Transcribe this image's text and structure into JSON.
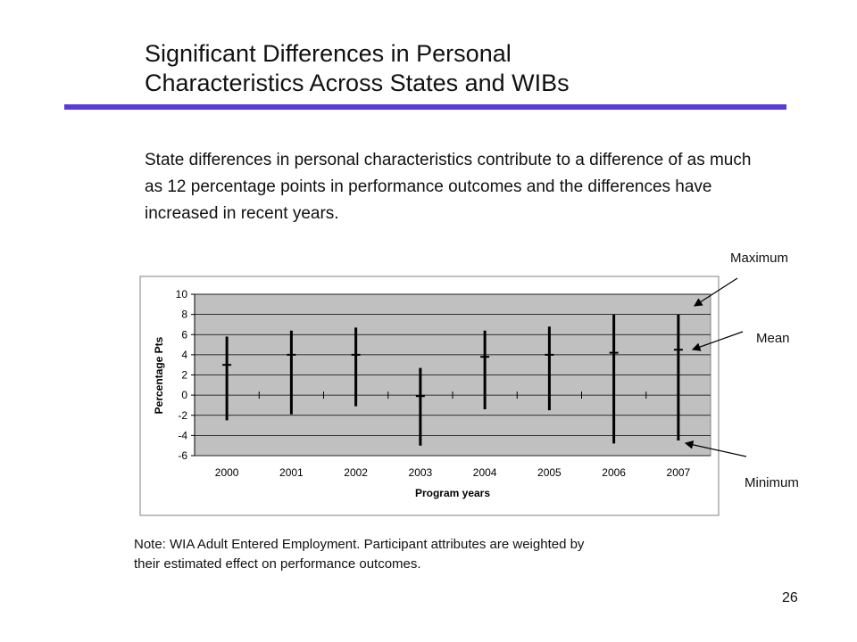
{
  "slide": {
    "title_line1": "Significant Differences in Personal",
    "title_line2": "Characteristics Across States and WIBs",
    "body": "State differences in personal characteristics contribute to a difference of as much as 12 percentage points in performance outcomes and the differences have increased in recent years.",
    "note_line1": "Note:  WIA Adult Entered Employment.  Participant attributes are weighted by",
    "note_line2": "their estimated effect on performance outcomes.",
    "page_number": "26",
    "accent_color": "#5b3ad6"
  },
  "callouts": {
    "maximum": "Maximum",
    "mean": "Mean",
    "minimum": "Minimum"
  },
  "chart_data": {
    "type": "high-low-mean",
    "categories": [
      "2000",
      "2001",
      "2002",
      "2003",
      "2004",
      "2005",
      "2006",
      "2007"
    ],
    "series": [
      {
        "name": "Maximum",
        "values": [
          5.8,
          6.4,
          6.7,
          2.7,
          6.4,
          6.8,
          8.0,
          8.0
        ]
      },
      {
        "name": "Mean",
        "values": [
          3.0,
          4.0,
          4.0,
          -0.1,
          3.8,
          4.0,
          4.2,
          4.5
        ]
      },
      {
        "name": "Minimum",
        "values": [
          -2.5,
          -1.9,
          -1.1,
          -5.0,
          -1.4,
          -1.5,
          -4.8,
          -4.5
        ]
      }
    ],
    "xlabel": "Program years",
    "ylabel": "Percentage Pts",
    "ylim": [
      -6,
      10
    ],
    "yticks": [
      10,
      8,
      6,
      4,
      2,
      0,
      -2,
      -4,
      -6
    ],
    "grid": true,
    "plot_background": "#c0c0c0"
  }
}
